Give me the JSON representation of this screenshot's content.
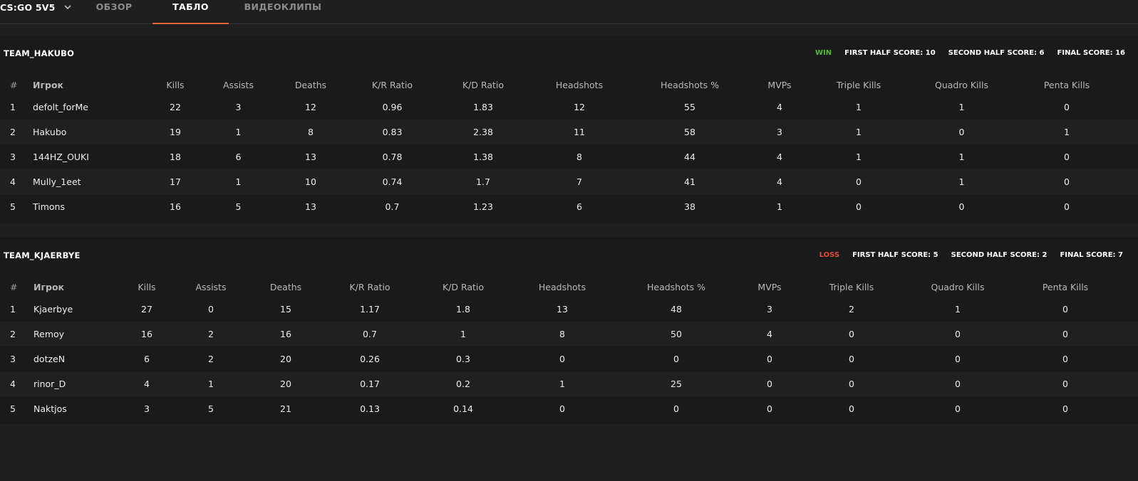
{
  "game_select": {
    "label": "CS:GO 5V5",
    "icon": "chevron-down-icon"
  },
  "tabs": [
    {
      "label": "ОБЗОР",
      "active": false
    },
    {
      "label": "ТАБЛО",
      "active": true
    },
    {
      "label": "ВИДЕОКЛИПЫ",
      "active": false
    }
  ],
  "colors": {
    "accent": "#e8662f",
    "win": "#56b842",
    "loss": "#e04a3c"
  },
  "columns": [
    "#",
    "Игрок",
    "Kills",
    "Assists",
    "Deaths",
    "K/R Ratio",
    "K/D Ratio",
    "Headshots",
    "Headshots %",
    "MVPs",
    "Triple Kills",
    "Quadro Kills",
    "Penta Kills"
  ],
  "teams": [
    {
      "name": "TEAM_HAKUBO",
      "result": "WIN",
      "first_half": "FIRST HALF SCORE: 10",
      "second_half": "SECOND HALF SCORE: 6",
      "final": "FINAL SCORE: 16",
      "rows": [
        [
          "1",
          "defolt_forMe",
          "22",
          "3",
          "12",
          "0.96",
          "1.83",
          "12",
          "55",
          "4",
          "1",
          "1",
          "0"
        ],
        [
          "2",
          "Hakubo",
          "19",
          "1",
          "8",
          "0.83",
          "2.38",
          "11",
          "58",
          "3",
          "1",
          "0",
          "1"
        ],
        [
          "3",
          "144HZ_OUKI",
          "18",
          "6",
          "13",
          "0.78",
          "1.38",
          "8",
          "44",
          "4",
          "1",
          "1",
          "0"
        ],
        [
          "4",
          "Mully_1eet",
          "17",
          "1",
          "10",
          "0.74",
          "1.7",
          "7",
          "41",
          "4",
          "0",
          "1",
          "0"
        ],
        [
          "5",
          "Timons",
          "16",
          "5",
          "13",
          "0.7",
          "1.23",
          "6",
          "38",
          "1",
          "0",
          "0",
          "0"
        ]
      ]
    },
    {
      "name": "TEAM_KJAERBYE",
      "result": "LOSS",
      "first_half": "FIRST HALF SCORE: 5",
      "second_half": "SECOND HALF SCORE: 2",
      "final": "FINAL SCORE: 7",
      "rows": [
        [
          "1",
          "Kjaerbye",
          "27",
          "0",
          "15",
          "1.17",
          "1.8",
          "13",
          "48",
          "3",
          "2",
          "1",
          "0"
        ],
        [
          "2",
          "Remoy",
          "16",
          "2",
          "16",
          "0.7",
          "1",
          "8",
          "50",
          "4",
          "0",
          "0",
          "0"
        ],
        [
          "3",
          "dotzeN",
          "6",
          "2",
          "20",
          "0.26",
          "0.3",
          "0",
          "0",
          "0",
          "0",
          "0",
          "0"
        ],
        [
          "4",
          "rinor_D",
          "4",
          "1",
          "20",
          "0.17",
          "0.2",
          "1",
          "25",
          "0",
          "0",
          "0",
          "0"
        ],
        [
          "5",
          "Naktjos",
          "3",
          "5",
          "21",
          "0.13",
          "0.14",
          "0",
          "0",
          "0",
          "0",
          "0",
          "0"
        ]
      ]
    }
  ]
}
